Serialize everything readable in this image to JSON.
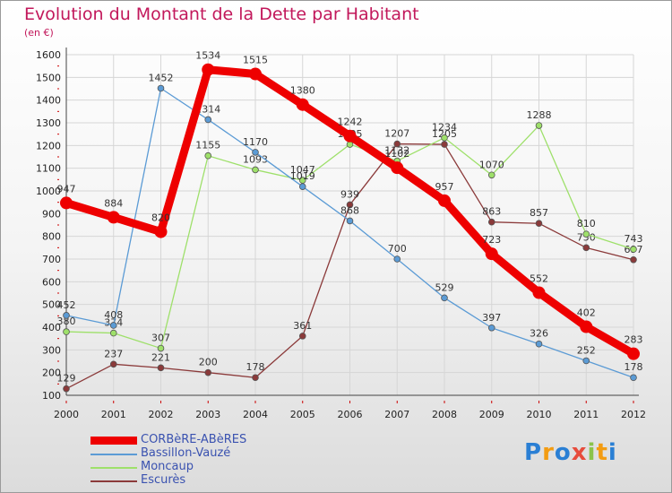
{
  "header": {
    "title": "Evolution du Montant de la Dette par Habitant",
    "subtitle": "(en €)"
  },
  "logo": {
    "text": "Proxiti"
  },
  "chart_data": {
    "type": "line",
    "title": "Evolution du Montant de la Dette par Habitant",
    "subtitle": "(en €)",
    "xlabel": "",
    "ylabel": "",
    "x": [
      "2000",
      "2001",
      "2002",
      "2003",
      "2004",
      "2005",
      "2006",
      "2007",
      "2008",
      "2009",
      "2010",
      "2011",
      "2012"
    ],
    "ylim": [
      100,
      1600
    ],
    "yticks": [
      100,
      200,
      300,
      400,
      500,
      600,
      700,
      800,
      900,
      1000,
      1100,
      1200,
      1300,
      1400,
      1500,
      1600
    ],
    "grid": true,
    "legend": "bottom-left",
    "series": [
      {
        "name": "CORBèRE-ABèRES",
        "color": "#ee0000",
        "values": [
          947,
          884,
          820,
          1534,
          1515,
          1380,
          1242,
          1102,
          957,
          723,
          552,
          402,
          283
        ]
      },
      {
        "name": "Bassillon-Vauzé",
        "color": "#5b9bd5",
        "values": [
          452,
          408,
          1452,
          1314,
          1170,
          1019,
          868,
          700,
          529,
          397,
          326,
          252,
          178
        ]
      },
      {
        "name": "Moncaup",
        "color": "#9ee06a",
        "values": [
          380,
          374,
          307,
          1155,
          1093,
          1047,
          1205,
          1132,
          1234,
          1070,
          1288,
          810,
          743
        ]
      },
      {
        "name": "Escurès",
        "color": "#8b3a3a",
        "values": [
          129,
          237,
          221,
          200,
          178,
          361,
          939,
          1207,
          1205,
          863,
          857,
          750,
          697
        ]
      }
    ]
  }
}
